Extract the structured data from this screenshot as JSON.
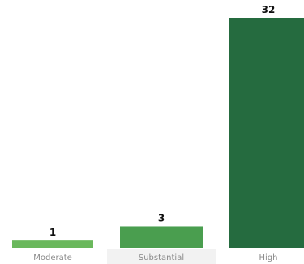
{
  "chart_data": {
    "type": "bar",
    "title": "",
    "xlabel": "",
    "ylabel": "",
    "categories": [
      "Moderate",
      "Substantial",
      "High"
    ],
    "values": [
      1,
      3,
      32
    ],
    "ylim": [
      0,
      32
    ],
    "grid": false,
    "legend": "none",
    "colors": [
      "#6ab85c",
      "#4a9e4f",
      "#256b3f"
    ],
    "highlight_category_background": "#f2f2f2",
    "highlight_index": 1,
    "show_value_labels": true
  }
}
